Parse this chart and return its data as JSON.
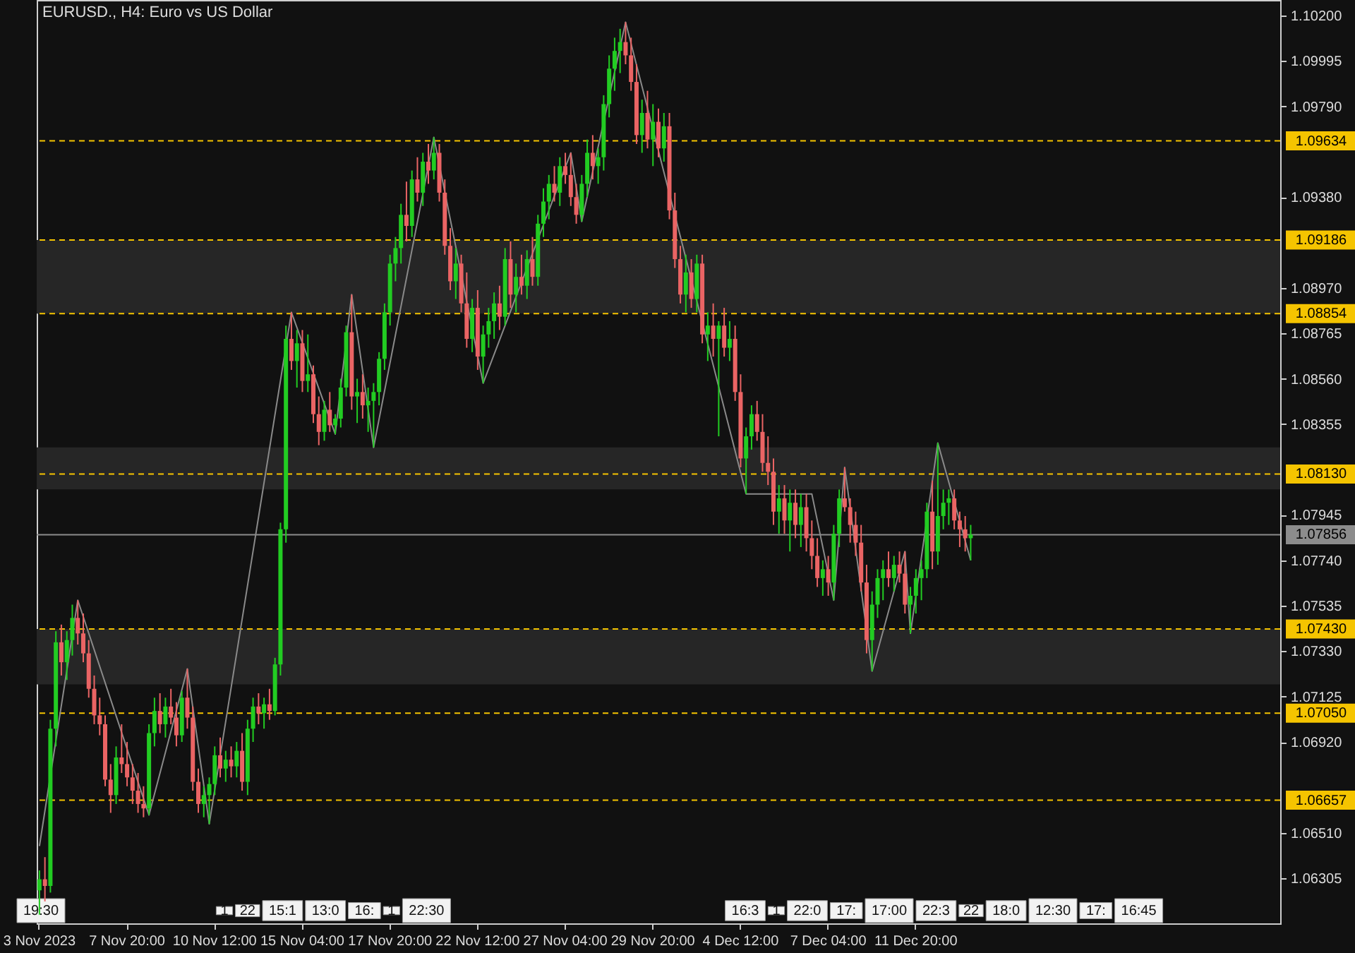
{
  "chart_data": {
    "type": "candlestick",
    "title": "EURUSD., H4:  Euro vs US Dollar",
    "categories": [
      "3 Nov 2023",
      null,
      null,
      null,
      null,
      null,
      null,
      null,
      null,
      null,
      null,
      null,
      null,
      null,
      null,
      null,
      "7 Nov 20:00",
      null,
      null,
      null,
      null,
      null,
      null,
      null,
      null,
      null,
      null,
      null,
      null,
      null,
      null,
      null,
      "10 Nov 12:00",
      null,
      null,
      null,
      null,
      null,
      null,
      null,
      null,
      null,
      null,
      null,
      null,
      null,
      null,
      null,
      "15 Nov 04:00",
      null,
      null,
      null,
      null,
      null,
      null,
      null,
      null,
      null,
      null,
      null,
      null,
      null,
      null,
      null,
      "17 Nov 20:00",
      null,
      null,
      null,
      null,
      null,
      null,
      null,
      null,
      null,
      null,
      null,
      null,
      null,
      null,
      null,
      "22 Nov 12:00",
      null,
      null,
      null,
      null,
      null,
      null,
      null,
      null,
      null,
      null,
      null,
      null,
      null,
      null,
      null,
      "27 Nov 04:00",
      null,
      null,
      null,
      null,
      null,
      null,
      null,
      null,
      null,
      null,
      null,
      null,
      null,
      null,
      null,
      "29 Nov 20:00",
      null,
      null,
      null,
      null,
      null,
      null,
      null,
      null,
      null,
      null,
      null,
      null,
      null,
      null,
      null,
      "4 Dec 12:00",
      null,
      null,
      null,
      null,
      null,
      null,
      null,
      null,
      null,
      null,
      null,
      null,
      null,
      null,
      null,
      "7 Dec 04:00",
      null,
      null,
      null,
      null,
      null,
      null,
      null,
      null,
      null,
      null,
      null,
      null,
      null,
      null,
      null,
      "11 Dec 20:00",
      null,
      null,
      null,
      null,
      null,
      null,
      null,
      null,
      null,
      null,
      null,
      null,
      null,
      null,
      null,
      null,
      null,
      null,
      null,
      null,
      null,
      null,
      null,
      null,
      null,
      null,
      null,
      null,
      null,
      null,
      null,
      null,
      null,
      null,
      null,
      null,
      null,
      null,
      null,
      null,
      null,
      null,
      null,
      null,
      null,
      null,
      null,
      null,
      null,
      null,
      null,
      null,
      null,
      null,
      null,
      null,
      null,
      null,
      null,
      null,
      null,
      null,
      null,
      null,
      null,
      null
    ],
    "series": [
      {
        "type": "candlestick",
        "colors": [
          "#22cc22",
          "#ea6464",
          "#22cc22",
          "#22cc22",
          "#ea6464",
          "#22cc22",
          "#22cc22",
          "#ea6464",
          "#ea6464",
          "#ea6464",
          "#ea6464",
          "#ea6464",
          "#ea6464",
          "#ea6464",
          "#22cc22",
          "#ea6464",
          "#ea6464",
          "#ea6464",
          "#ea6464",
          "#ea6464",
          "#22cc22",
          "#22cc22",
          "#ea6464",
          "#22cc22",
          "#ea6464",
          "#ea6464",
          "#22cc22",
          "#ea6464",
          "#ea6464",
          "#ea6464",
          "#22cc22",
          "#22cc22",
          "#22cc22",
          "#ea6464",
          "#22cc22",
          "#ea6464",
          "#22cc22",
          "#ea6464",
          "#22cc22",
          "#22cc22",
          "#ea6464",
          "#22cc22",
          "#ea6464",
          "#22cc22",
          "#22cc22",
          "#22cc22",
          "#ea6464",
          "#22cc22",
          "#ea6464",
          "#22cc22",
          "#ea6464",
          "#ea6464",
          "#22cc22",
          "#ea6464",
          "#22cc22",
          "#22cc22",
          "#22cc22",
          "#ea6464",
          "#22cc22",
          "#ea6464",
          "#22cc22",
          "#22cc22",
          "#22cc22",
          "#22cc22",
          "#22cc22",
          "#22cc22",
          "#22cc22",
          "#ea6464",
          "#22cc22",
          "#ea6464",
          "#22cc22",
          "#ea6464",
          "#22cc22",
          "#ea6464",
          "#ea6464",
          "#ea6464",
          "#22cc22",
          "#ea6464",
          "#ea6464",
          "#22cc22",
          "#ea6464",
          "#22cc22",
          "#22cc22",
          "#22cc22",
          "#ea6464",
          "#22cc22",
          "#ea6464",
          "#22cc22",
          "#ea6464",
          "#22cc22",
          "#ea6464",
          "#22cc22",
          "#22cc22",
          "#22cc22",
          "#ea6464",
          "#22cc22",
          "#ea6464",
          "#ea6464",
          "#ea6464",
          "#22cc22",
          "#22cc22",
          "#ea6464",
          "#22cc22",
          "#22cc22",
          "#22cc22",
          "#22cc22",
          "#22cc22",
          "#ea6464",
          "#ea6464",
          "#ea6464",
          "#22cc22",
          "#ea6464",
          "#22cc22",
          "#ea6464",
          "#22cc22",
          "#ea6464",
          "#ea6464",
          "#ea6464",
          "#22cc22",
          "#ea6464",
          "#22cc22",
          "#ea6464",
          "#22cc22",
          "#ea6464",
          "#22cc22",
          "#ea6464",
          "#22cc22",
          "#ea6464",
          "#ea6464",
          "#22cc22",
          "#22cc22",
          "#ea6464",
          "#ea6464",
          "#ea6464",
          "#ea6464",
          "#22cc22",
          "#ea6464",
          "#22cc22",
          "#ea6464",
          "#22cc22",
          "#ea6464",
          "#ea6464",
          "#ea6464",
          "#22cc22",
          "#ea6464",
          "#22cc22",
          "#22cc22",
          "#ea6464",
          "#ea6464",
          "#ea6464",
          "#ea6464",
          "#ea6464",
          "#22cc22",
          "#22cc22",
          "#22cc22",
          "#ea6464",
          "#22cc22",
          "#ea6464",
          "#ea6464",
          "#22cc22",
          "#22cc22",
          "#22cc22",
          "#22cc22",
          "#ea6464",
          "#22cc22",
          "#22cc22",
          "#22cc22",
          "#ea6464",
          "#ea6464",
          "#ea6464",
          "#22cc22",
          null,
          null,
          null,
          null,
          null,
          null,
          null,
          null,
          null,
          null,
          null,
          null,
          null,
          null,
          null,
          null,
          null,
          null,
          null,
          null,
          null,
          null,
          null,
          null,
          null,
          null,
          null,
          null,
          null,
          null,
          null,
          null,
          null,
          null,
          null,
          null,
          null,
          null,
          null,
          null,
          null,
          null,
          null,
          null,
          null,
          null,
          null,
          null,
          null,
          null,
          null,
          null,
          null,
          null,
          null,
          null
        ],
        "ohlc": [
          [
            1.0625,
            1.0634,
            1.0614,
            1.063
          ],
          [
            1.063,
            1.064,
            1.062,
            1.0627
          ],
          [
            1.0627,
            1.0702,
            1.0624,
            1.0698
          ],
          [
            1.0698,
            1.0742,
            1.069,
            1.0737
          ],
          [
            1.0737,
            1.0745,
            1.0722,
            1.0728
          ],
          [
            1.0728,
            1.0742,
            1.072,
            1.0738
          ],
          [
            1.0738,
            1.0754,
            1.0731,
            1.0748
          ],
          [
            1.0748,
            1.0756,
            1.0736,
            1.0741
          ],
          [
            1.0741,
            1.075,
            1.0728,
            1.0732
          ],
          [
            1.0732,
            1.0738,
            1.0712,
            1.0716
          ],
          [
            1.0716,
            1.0722,
            1.07,
            1.0704
          ],
          [
            1.0704,
            1.0712,
            1.0695,
            1.07
          ],
          [
            1.07,
            1.0704,
            1.0672,
            1.0675
          ],
          [
            1.0675,
            1.0682,
            1.066,
            1.0668
          ],
          [
            1.0668,
            1.069,
            1.0664,
            1.0685
          ],
          [
            1.0685,
            1.07,
            1.0678,
            1.0682
          ],
          [
            1.0682,
            1.0692,
            1.0672,
            1.0676
          ],
          [
            1.0676,
            1.0682,
            1.0664,
            1.067
          ],
          [
            1.067,
            1.0678,
            1.066,
            1.0664
          ],
          [
            1.0664,
            1.0672,
            1.0658,
            1.0662
          ],
          [
            1.0662,
            1.07,
            1.0659,
            1.0696
          ],
          [
            1.0696,
            1.0712,
            1.069,
            1.0706
          ],
          [
            1.0706,
            1.0714,
            1.0696,
            1.07
          ],
          [
            1.07,
            1.0712,
            1.0694,
            1.0708
          ],
          [
            1.0708,
            1.0716,
            1.07,
            1.0703
          ],
          [
            1.0703,
            1.071,
            1.069,
            1.0695
          ],
          [
            1.0695,
            1.0715,
            1.0692,
            1.0712
          ],
          [
            1.0712,
            1.0725,
            1.0698,
            1.0703
          ],
          [
            1.0703,
            1.0708,
            1.067,
            1.0674
          ],
          [
            1.0674,
            1.068,
            1.066,
            1.0664
          ],
          [
            1.0664,
            1.0672,
            1.0658,
            1.0668
          ],
          [
            1.0668,
            1.0676,
            1.0655,
            1.0673
          ],
          [
            1.0673,
            1.069,
            1.0668,
            1.0686
          ],
          [
            1.0686,
            1.0694,
            1.0676,
            1.068
          ],
          [
            1.068,
            1.0688,
            1.0674,
            1.0684
          ],
          [
            1.0684,
            1.069,
            1.0676,
            1.0681
          ],
          [
            1.0681,
            1.0692,
            1.0676,
            1.0688
          ],
          [
            1.0688,
            1.0696,
            1.067,
            1.0674
          ],
          [
            1.0674,
            1.0702,
            1.0668,
            1.0698
          ],
          [
            1.0698,
            1.0712,
            1.0692,
            1.0708
          ],
          [
            1.0708,
            1.0714,
            1.07,
            1.0705
          ],
          [
            1.0705,
            1.0712,
            1.0698,
            1.0709
          ],
          [
            1.0709,
            1.0716,
            1.0702,
            1.0706
          ],
          [
            1.0706,
            1.073,
            1.0704,
            1.0727
          ],
          [
            1.0727,
            1.0791,
            1.0722,
            1.0788
          ],
          [
            1.0788,
            1.088,
            1.0782,
            1.0874
          ],
          [
            1.0874,
            1.0886,
            1.086,
            1.0864
          ],
          [
            1.0864,
            1.0878,
            1.0852,
            1.0872
          ],
          [
            1.0872,
            1.0878,
            1.085,
            1.0855
          ],
          [
            1.0855,
            1.0876,
            1.085,
            1.0858
          ],
          [
            1.0858,
            1.0862,
            1.0836,
            1.084
          ],
          [
            1.084,
            1.0848,
            1.0826,
            1.0832
          ],
          [
            1.0832,
            1.0846,
            1.0828,
            1.0842
          ],
          [
            1.0842,
            1.085,
            1.0832,
            1.0835
          ],
          [
            1.0835,
            1.084,
            1.0831,
            1.0838
          ],
          [
            1.0838,
            1.0856,
            1.0834,
            1.0852
          ],
          [
            1.0852,
            1.088,
            1.0848,
            1.0877
          ],
          [
            1.0877,
            1.0894,
            1.0842,
            1.0848
          ],
          [
            1.0848,
            1.0856,
            1.0836,
            1.085
          ],
          [
            1.085,
            1.0858,
            1.0838,
            1.0844
          ],
          [
            1.0844,
            1.0852,
            1.0832,
            1.0846
          ],
          [
            1.0846,
            1.0854,
            1.0825,
            1.085
          ],
          [
            1.085,
            1.0868,
            1.0844,
            1.0865
          ],
          [
            1.0865,
            1.089,
            1.086,
            1.0886
          ],
          [
            1.0886,
            1.0912,
            1.088,
            1.0908
          ],
          [
            1.0908,
            1.092,
            1.09,
            1.0915
          ],
          [
            1.0915,
            1.0935,
            1.0908,
            1.093
          ],
          [
            1.093,
            1.0945,
            1.0918,
            1.0925
          ],
          [
            1.0925,
            1.095,
            1.092,
            1.0946
          ],
          [
            1.0946,
            1.0956,
            1.0936,
            1.094
          ],
          [
            1.094,
            1.0958,
            1.0934,
            1.0954
          ],
          [
            1.0954,
            1.0962,
            1.0944,
            1.095
          ],
          [
            1.095,
            1.0965,
            1.0946,
            1.0958
          ],
          [
            1.0958,
            1.0962,
            1.0936,
            1.094
          ],
          [
            1.094,
            1.0946,
            1.0912,
            1.0916
          ],
          [
            1.0916,
            1.0924,
            1.0896,
            1.09
          ],
          [
            1.09,
            1.0915,
            1.0892,
            1.0908
          ],
          [
            1.0908,
            1.0912,
            1.0886,
            1.089
          ],
          [
            1.089,
            1.0904,
            1.087,
            1.0874
          ],
          [
            1.0874,
            1.0892,
            1.0868,
            1.0888
          ],
          [
            1.0888,
            1.0896,
            1.086,
            1.0866
          ],
          [
            1.0866,
            1.088,
            1.0854,
            1.0876
          ],
          [
            1.0876,
            1.0888,
            1.087,
            1.0882
          ],
          [
            1.0882,
            1.0895,
            1.0874,
            1.089
          ],
          [
            1.089,
            1.0898,
            1.0878,
            1.0884
          ],
          [
            1.0884,
            1.0915,
            1.088,
            1.091
          ],
          [
            1.091,
            1.0918,
            1.0888,
            1.0894
          ],
          [
            1.0894,
            1.0908,
            1.0886,
            1.0902
          ],
          [
            1.0902,
            1.0912,
            1.0894,
            1.0898
          ],
          [
            1.0898,
            1.0914,
            1.0892,
            1.091
          ],
          [
            1.091,
            1.092,
            1.0898,
            1.0902
          ],
          [
            1.0902,
            1.093,
            1.0898,
            1.0926
          ],
          [
            1.0926,
            1.0942,
            1.092,
            1.0936
          ],
          [
            1.0936,
            1.0948,
            1.0928,
            1.0944
          ],
          [
            1.0944,
            1.0952,
            1.0936,
            1.094
          ],
          [
            1.094,
            1.0956,
            1.0934,
            1.0952
          ],
          [
            1.0952,
            1.0958,
            1.0944,
            1.0948
          ],
          [
            1.0948,
            1.0958,
            1.0934,
            1.0938
          ],
          [
            1.0938,
            1.0944,
            1.0926,
            1.093
          ],
          [
            1.093,
            1.0948,
            1.0927,
            1.0944
          ],
          [
            1.0944,
            1.0964,
            1.0938,
            1.0958
          ],
          [
            1.0958,
            1.0966,
            1.0946,
            1.0952
          ],
          [
            1.0952,
            1.096,
            1.0944,
            1.0956
          ],
          [
            1.0956,
            1.0984,
            1.095,
            1.098
          ],
          [
            1.098,
            1.1002,
            1.0974,
            1.0996
          ],
          [
            1.0996,
            1.101,
            1.0986,
            1.1004
          ],
          [
            1.1004,
            1.1014,
            1.0994,
            1.1008
          ],
          [
            1.1008,
            1.1017,
            1.0998,
            1.1002
          ],
          [
            1.1002,
            1.101,
            1.0986,
            1.099
          ],
          [
            1.099,
            1.0998,
            1.0962,
            1.0966
          ],
          [
            1.0966,
            1.0982,
            1.0958,
            1.0976
          ],
          [
            1.0976,
            1.0986,
            1.096,
            1.0964
          ],
          [
            1.0964,
            1.098,
            1.0952,
            1.0972
          ],
          [
            1.0972,
            1.0978,
            1.0956,
            1.096
          ],
          [
            1.096,
            1.0976,
            1.0954,
            1.097
          ],
          [
            1.097,
            1.0976,
            1.0928,
            1.0932
          ],
          [
            1.0932,
            1.094,
            1.0906,
            1.091
          ],
          [
            1.091,
            1.0916,
            1.089,
            1.0894
          ],
          [
            1.0894,
            1.0912,
            1.0886,
            1.0904
          ],
          [
            1.0904,
            1.091,
            1.0888,
            1.0892
          ],
          [
            1.0892,
            1.0912,
            1.0886,
            1.0908
          ],
          [
            1.0908,
            1.0912,
            1.0872,
            1.0876
          ],
          [
            1.0876,
            1.0886,
            1.0864,
            1.088
          ],
          [
            1.088,
            1.089,
            1.0866,
            1.0874
          ],
          [
            1.0874,
            1.0882,
            1.083,
            1.088
          ],
          [
            1.088,
            1.0888,
            1.0866,
            1.087
          ],
          [
            1.087,
            1.0882,
            1.0864,
            1.0874
          ],
          [
            1.0874,
            1.088,
            1.0846,
            1.085
          ],
          [
            1.085,
            1.0858,
            1.0816,
            1.082
          ],
          [
            1.082,
            1.0834,
            1.0804,
            1.083
          ],
          [
            1.083,
            1.0844,
            1.0824,
            1.084
          ],
          [
            1.084,
            1.0846,
            1.0828,
            1.0832
          ],
          [
            1.0832,
            1.084,
            1.0814,
            1.0818
          ],
          [
            1.0818,
            1.083,
            1.0808,
            1.0814
          ],
          [
            1.0814,
            1.082,
            1.079,
            1.0796
          ],
          [
            1.0796,
            1.0808,
            1.0786,
            1.0802
          ],
          [
            1.0802,
            1.0808,
            1.0786,
            1.0792
          ],
          [
            1.0792,
            1.0806,
            1.0778,
            1.08
          ],
          [
            1.08,
            1.0806,
            1.0784,
            1.079
          ],
          [
            1.079,
            1.0804,
            1.078,
            1.0798
          ],
          [
            1.0798,
            1.0804,
            1.0778,
            1.0784
          ],
          [
            1.0784,
            1.0792,
            1.077,
            1.0776
          ],
          [
            1.0776,
            1.0784,
            1.0762,
            1.0766
          ],
          [
            1.0766,
            1.0774,
            1.0758,
            1.077
          ],
          [
            1.077,
            1.0776,
            1.0758,
            1.0764
          ],
          [
            1.0764,
            1.079,
            1.0756,
            1.0786
          ],
          [
            1.0786,
            1.0806,
            1.078,
            1.0802
          ],
          [
            1.0802,
            1.0816,
            1.0796,
            1.0798
          ],
          [
            1.0798,
            1.0802,
            1.0782,
            1.079
          ],
          [
            1.079,
            1.0796,
            1.0776,
            1.0782
          ],
          [
            1.0782,
            1.079,
            1.076,
            1.0764
          ],
          [
            1.0764,
            1.0772,
            1.0732,
            1.0738
          ],
          [
            1.0738,
            1.076,
            1.0724,
            1.0754
          ],
          [
            1.0754,
            1.077,
            1.0748,
            1.0766
          ],
          [
            1.0766,
            1.0774,
            1.0756,
            1.077
          ],
          [
            1.077,
            1.0778,
            1.0762,
            1.0766
          ],
          [
            1.0766,
            1.0776,
            1.076,
            1.0772
          ],
          [
            1.0772,
            1.0778,
            1.0764,
            1.0768
          ],
          [
            1.0768,
            1.0778,
            1.075,
            1.0754
          ],
          [
            1.0754,
            1.0762,
            1.0741,
            1.0758
          ],
          [
            1.0758,
            1.077,
            1.075,
            1.0766
          ],
          [
            1.0766,
            1.0774,
            1.0756,
            1.077
          ],
          [
            1.077,
            1.08,
            1.0766,
            1.0796
          ],
          [
            1.0796,
            1.081,
            1.077,
            1.0778
          ],
          [
            1.0778,
            1.0827,
            1.0772,
            1.0794
          ],
          [
            1.0794,
            1.0806,
            1.0788,
            1.08
          ],
          [
            1.08,
            1.0806,
            1.079,
            1.0802
          ],
          [
            1.0802,
            1.0806,
            1.0788,
            1.0792
          ],
          [
            1.0792,
            1.0796,
            1.078,
            1.0788
          ],
          [
            1.0788,
            1.0794,
            1.0778,
            1.0784
          ],
          [
            1.0784,
            1.079,
            1.0774,
            1.07856
          ],
          null,
          null,
          null,
          null,
          null,
          null,
          null,
          null,
          null,
          null,
          null,
          null,
          null,
          null,
          null,
          null,
          null,
          null,
          null,
          null,
          null,
          null,
          null,
          null,
          null,
          null,
          null,
          null,
          null,
          null,
          null,
          null,
          null,
          null,
          null,
          null,
          null,
          null,
          null,
          null,
          null,
          null,
          null,
          null,
          null,
          null,
          null,
          null,
          null,
          null,
          null,
          null,
          null,
          null,
          null,
          null
        ]
      },
      {
        "type": "line",
        "color": "#8a8a8a",
        "values": [
          1.0645,
          null,
          null,
          null,
          null,
          null,
          null,
          1.0756,
          null,
          null,
          null,
          null,
          null,
          null,
          null,
          null,
          null,
          null,
          null,
          null,
          1.0659,
          null,
          null,
          null,
          null,
          null,
          null,
          1.0725,
          null,
          null,
          null,
          1.0655,
          null,
          null,
          null,
          null,
          null,
          null,
          null,
          null,
          null,
          null,
          null,
          null,
          null,
          null,
          1.0886,
          null,
          null,
          null,
          null,
          null,
          null,
          null,
          1.0831,
          null,
          null,
          1.0894,
          null,
          null,
          null,
          1.0825,
          null,
          null,
          null,
          null,
          null,
          null,
          null,
          null,
          null,
          null,
          1.0965,
          null,
          null,
          null,
          null,
          null,
          null,
          null,
          null,
          1.0854,
          null,
          null,
          null,
          null,
          null,
          null,
          null,
          null,
          null,
          null,
          null,
          null,
          null,
          null,
          null,
          1.0958,
          null,
          1.0927,
          null,
          null,
          null,
          null,
          null,
          null,
          null,
          1.1017,
          null,
          null,
          null,
          null,
          null,
          null,
          null,
          null,
          null,
          null,
          null,
          null,
          null,
          null,
          null,
          null,
          null,
          null,
          null,
          null,
          null,
          1.0804,
          null,
          null,
          null,
          null,
          null,
          null,
          null,
          null,
          null,
          null,
          null,
          1.0804,
          null,
          null,
          null,
          1.0756,
          null,
          1.0816,
          null,
          null,
          null,
          null,
          1.0724,
          null,
          null,
          null,
          null,
          null,
          1.0778,
          1.0741,
          null,
          null,
          null,
          null,
          1.0827,
          null,
          null,
          null,
          null,
          null,
          1.0774,
          null,
          null,
          null,
          null,
          null,
          null,
          null,
          null,
          null,
          null,
          null,
          null,
          null,
          null,
          null,
          null,
          null,
          null,
          null,
          null,
          null,
          null,
          null,
          null,
          null,
          null,
          null,
          null,
          null,
          null,
          null,
          null,
          null,
          null,
          null,
          null,
          null,
          null,
          null,
          null,
          null,
          null,
          null,
          null,
          null,
          null,
          null,
          null,
          null,
          null,
          null,
          null,
          null,
          null,
          null,
          null
        ]
      }
    ],
    "ylim": [
      1.06101,
      1.1027
    ],
    "yticks": [
      {
        "value": 1.102,
        "label": "1.10200"
      },
      {
        "value": 1.09995,
        "label": "1.09995"
      },
      {
        "value": 1.0979,
        "label": "1.09790"
      },
      {
        "value": 1.0938,
        "label": "1.09380"
      },
      {
        "value": 1.0897,
        "label": "1.08970"
      },
      {
        "value": 1.08765,
        "label": "1.08765"
      },
      {
        "value": 1.0856,
        "label": "1.08560"
      },
      {
        "value": 1.08355,
        "label": "1.08355"
      },
      {
        "value": 1.07945,
        "label": "1.07945"
      },
      {
        "value": 1.0774,
        "label": "1.07740"
      },
      {
        "value": 1.07535,
        "label": "1.07535"
      },
      {
        "value": 1.0733,
        "label": "1.07330"
      },
      {
        "value": 1.07125,
        "label": "1.07125"
      },
      {
        "value": 1.0692,
        "label": "1.06920"
      },
      {
        "value": 1.0651,
        "label": "1.06510"
      },
      {
        "value": 1.06305,
        "label": "1.06305"
      }
    ],
    "bands": [
      {
        "axis": "y",
        "from": 1.08854,
        "to": 1.09186,
        "color": "#262626"
      },
      {
        "axis": "y",
        "from": 1.0718,
        "to": 1.0743,
        "color": "#262626"
      },
      {
        "axis": "y",
        "from": 1.0806,
        "to": 1.0825,
        "color": "#262626"
      }
    ],
    "ref_lines": [
      {
        "axis": "y",
        "value": 1.09634,
        "label": "1.09634",
        "color": "#f5c400",
        "line_style": "dashed"
      },
      {
        "axis": "y",
        "value": 1.09186,
        "label": "1.09186",
        "color": "#f5c400",
        "line_style": "dashed"
      },
      {
        "axis": "y",
        "value": 1.08854,
        "label": "1.08854",
        "color": "#f5c400",
        "line_style": "dashed"
      },
      {
        "axis": "y",
        "value": 1.0813,
        "label": "1.08130",
        "color": "#f5c400",
        "line_style": "dashed"
      },
      {
        "axis": "y",
        "value": 1.0743,
        "label": "1.07430",
        "color": "#f5c400",
        "line_style": "dashed"
      },
      {
        "axis": "y",
        "value": 1.0705,
        "label": "1.07050",
        "color": "#f5c400",
        "line_style": "dashed"
      },
      {
        "axis": "y",
        "value": 1.06657,
        "label": "1.06657",
        "color": "#f5c400",
        "line_style": "dashed"
      },
      {
        "axis": "y",
        "value": 1.07856,
        "label": "1.07856",
        "color": "#8c8c8c",
        "line_style": "solid"
      }
    ],
    "annotations": [
      "19:30",
      "1",
      "22",
      "15:1",
      "13:0",
      "16:",
      "1",
      "22:30",
      "16:3",
      "1",
      "22:0",
      "17:",
      "17:00",
      "22:3",
      "22",
      "18:0",
      "12:30",
      "17:",
      "16:45"
    ]
  }
}
